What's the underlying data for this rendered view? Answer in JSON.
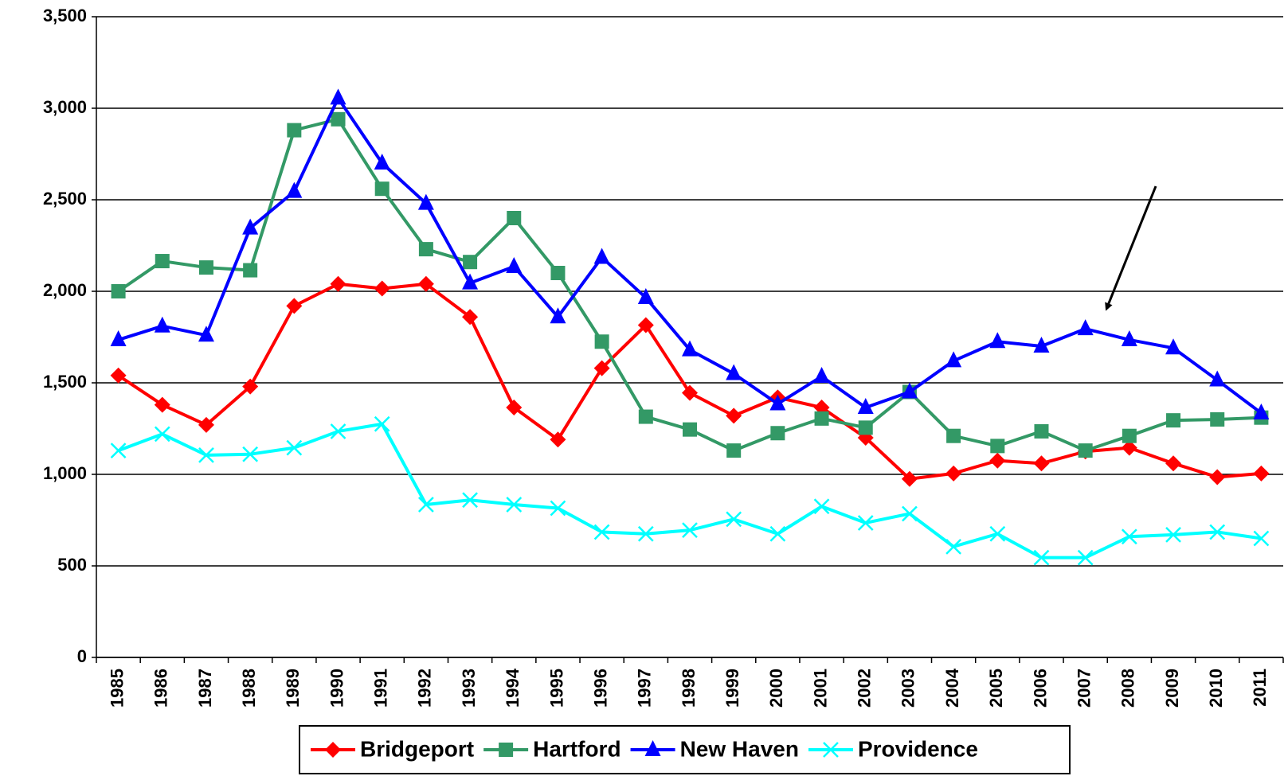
{
  "chart_data": {
    "type": "line",
    "categories": [
      "1985",
      "1986",
      "1987",
      "1988",
      "1989",
      "1990",
      "1991",
      "1992",
      "1993",
      "1994",
      "1995",
      "1996",
      "1997",
      "1998",
      "1999",
      "2000",
      "2001",
      "2002",
      "2003",
      "2004",
      "2005",
      "2006",
      "2007",
      "2008",
      "2009",
      "2010",
      "2011"
    ],
    "series": [
      {
        "name": "Bridgeport",
        "color": "#ff0000",
        "marker": "diamond",
        "values": [
          1540,
          1380,
          1270,
          1480,
          1920,
          2040,
          2015,
          2040,
          1860,
          1365,
          1190,
          1580,
          1815,
          1445,
          1320,
          1420,
          1365,
          1200,
          975,
          1005,
          1075,
          1060,
          1125,
          1145,
          1060,
          985,
          1005
        ]
      },
      {
        "name": "Hartford",
        "color": "#339966",
        "marker": "square",
        "values": [
          2000,
          2165,
          2130,
          2115,
          2880,
          2940,
          2560,
          2230,
          2160,
          2400,
          2100,
          1725,
          1315,
          1245,
          1130,
          1225,
          1305,
          1255,
          1450,
          1210,
          1155,
          1235,
          1130,
          1210,
          1295,
          1300,
          1310
        ]
      },
      {
        "name": "New Haven",
        "color": "#0000ff",
        "marker": "triangle",
        "values": [
          1735,
          1810,
          1760,
          2345,
          2545,
          3055,
          2700,
          2480,
          2045,
          2135,
          1860,
          2185,
          1965,
          1680,
          1550,
          1385,
          1535,
          1365,
          1450,
          1620,
          1725,
          1700,
          1795,
          1735,
          1690,
          1515,
          1335
        ]
      },
      {
        "name": "Providence",
        "color": "#00ffff",
        "marker": "x",
        "values": [
          1130,
          1220,
          1105,
          1110,
          1145,
          1235,
          1275,
          835,
          860,
          835,
          815,
          685,
          675,
          695,
          755,
          675,
          825,
          735,
          785,
          605,
          675,
          545,
          545,
          660,
          670,
          685,
          650
        ]
      }
    ],
    "ylim": [
      0,
      3500
    ],
    "yticks": [
      0,
      500,
      {
        "value": 1000,
        "label": "1,000"
      },
      {
        "value": 1500,
        "label": "1,500"
      },
      {
        "value": 2000,
        "label": "2,000"
      },
      {
        "value": 2500,
        "label": "2,500"
      },
      {
        "value": 3000,
        "label": "3,000"
      },
      {
        "value": 3500,
        "label": "3,500"
      }
    ],
    "grid": true,
    "legend": "bottom"
  }
}
